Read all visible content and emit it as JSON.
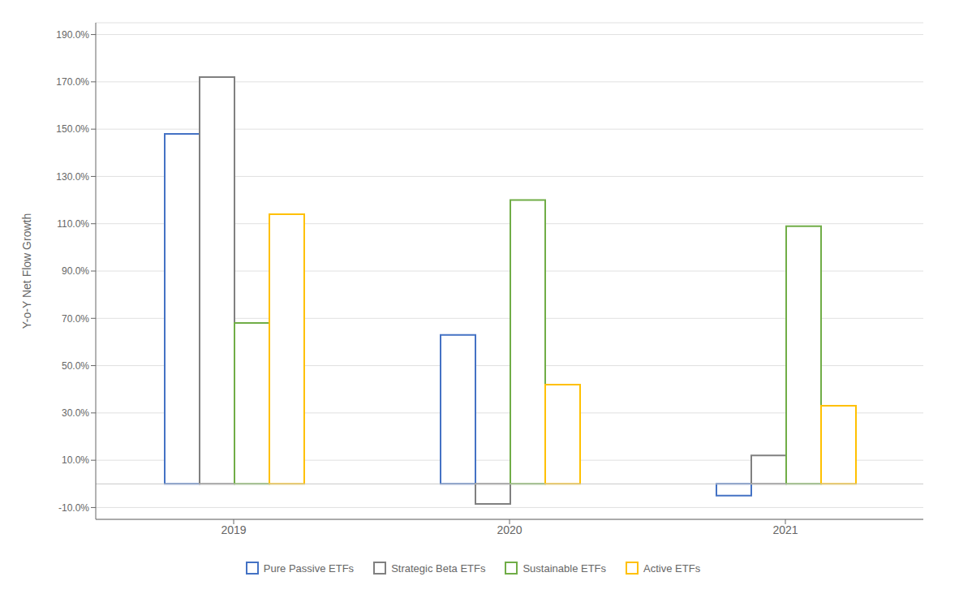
{
  "chart_data": {
    "type": "bar",
    "ylabel": "Y-o-Y Net Flow Growth",
    "categories": [
      "2019",
      "2020",
      "2021"
    ],
    "series": [
      {
        "name": "Pure Passive ETFs",
        "color": "#4472C4",
        "values": [
          148.0,
          63.0,
          -5.0
        ]
      },
      {
        "name": "Strategic Beta ETFs",
        "color": "#808080",
        "values": [
          172.0,
          -8.5,
          12.0
        ]
      },
      {
        "name": "Sustainable ETFs",
        "color": "#70AD47",
        "values": [
          68.0,
          120.0,
          109.0
        ]
      },
      {
        "name": "Active ETFs",
        "color": "#FFC000",
        "values": [
          114.0,
          42.0,
          33.0
        ]
      }
    ],
    "ylim": [
      -15.0,
      195.0
    ],
    "yticks": [
      {
        "value": -10.0,
        "label": "-10.0%"
      },
      {
        "value": 10.0,
        "label": "10.0%"
      },
      {
        "value": 30.0,
        "label": "30.0%"
      },
      {
        "value": 50.0,
        "label": "50.0%"
      },
      {
        "value": 70.0,
        "label": "70.0%"
      },
      {
        "value": 90.0,
        "label": "90.0%"
      },
      {
        "value": 110.0,
        "label": "110.0%"
      },
      {
        "value": 130.0,
        "label": "130.0%"
      },
      {
        "value": 150.0,
        "label": "150.0%"
      },
      {
        "value": 170.0,
        "label": "170.0%"
      },
      {
        "value": 190.0,
        "label": "190.0%"
      }
    ],
    "grid": true,
    "legend": "bottom"
  }
}
